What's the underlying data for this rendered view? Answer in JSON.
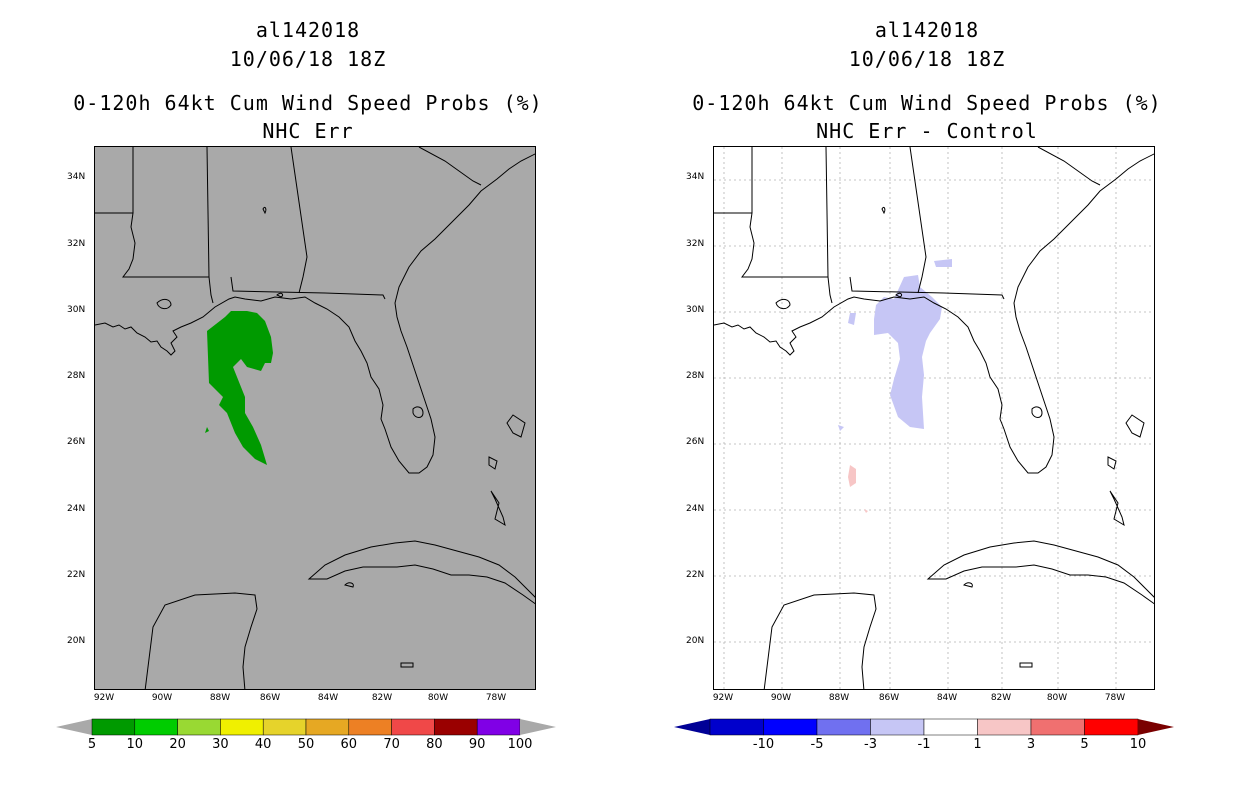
{
  "left_panel": {
    "storm_id": "al142018",
    "datetime": "10/06/18 18Z",
    "product": "0-120h 64kt Cum Wind Speed Probs (%)",
    "subtitle": "NHC Err",
    "background_color": "#a9a9a9",
    "colorbar": {
      "colors": [
        "#009a00",
        "#00cc00",
        "#99d933",
        "#f0f000",
        "#e6d32b",
        "#e6a823",
        "#ed8024",
        "#f04848",
        "#9a0000",
        "#8000e6"
      ],
      "end_color": "#a9a9a9",
      "labels": [
        "5",
        "10",
        "20",
        "30",
        "40",
        "50",
        "60",
        "70",
        "80",
        "90",
        "100"
      ]
    }
  },
  "right_panel": {
    "storm_id": "al142018",
    "datetime": "10/06/18 18Z",
    "product": "0-120h 64kt Cum Wind Speed Probs (%)",
    "subtitle": "NHC Err - Control",
    "background_color": "#ffffff",
    "colorbar": {
      "colors": [
        "#0000cc",
        "#0000ff",
        "#7070f0",
        "#c6c6f5",
        "#ffffff",
        "#f7c6c6",
        "#f07070",
        "#ff0000"
      ],
      "start_color": "#000096",
      "end_color": "#7a0000",
      "labels": [
        "-10",
        "-5",
        "-3",
        "-1",
        "1",
        "3",
        "5",
        "10"
      ]
    }
  },
  "axes": {
    "lat_labels": [
      "34N",
      "32N",
      "30N",
      "28N",
      "26N",
      "24N",
      "22N",
      "20N"
    ],
    "lon_labels": [
      "92W",
      "90W",
      "88W",
      "86W",
      "84W",
      "82W",
      "80W",
      "78W"
    ]
  }
}
